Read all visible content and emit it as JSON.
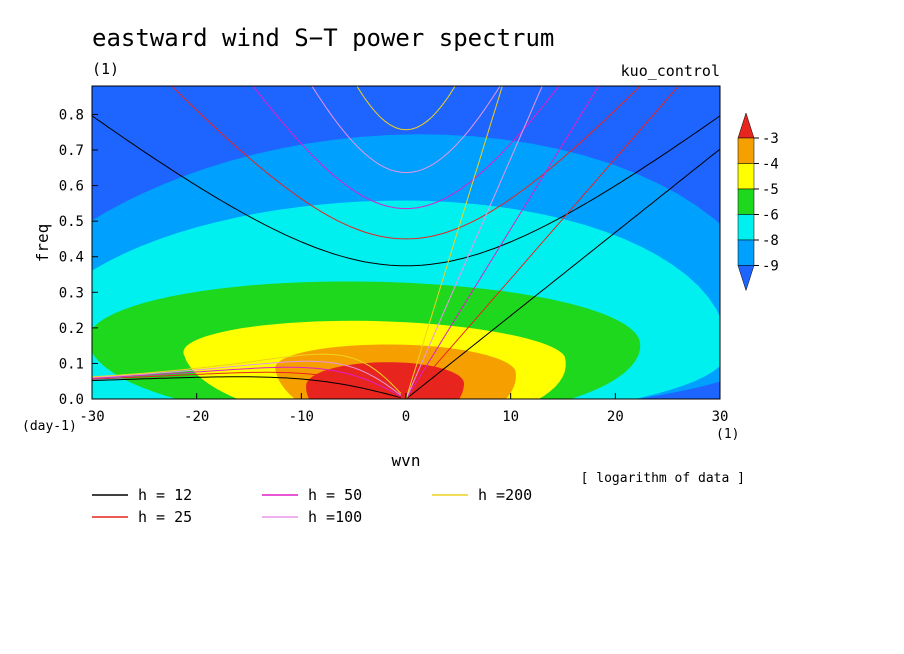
{
  "chart_data": {
    "type": "heatmap",
    "title": "eastward wind S−T power spectrum",
    "subtitle_left": "(1)",
    "subtitle_right": "kuo_control",
    "xlabel": "wvn",
    "ylabel": "freq",
    "x_unit": "(1)",
    "y_unit": "(day-1)",
    "note": "[ logarithm of data ]",
    "xlim": [
      -30,
      30
    ],
    "ylim": [
      0,
      0.88
    ],
    "xticks": [
      -30,
      -20,
      -10,
      0,
      10,
      20,
      30
    ],
    "yticks": [
      0.0,
      0.1,
      0.2,
      0.3,
      0.4,
      0.5,
      0.6,
      0.7,
      0.8
    ],
    "colorbar": {
      "levels": [
        "-3",
        "-4",
        "-5",
        "-6",
        "-8",
        "-9"
      ],
      "colors": [
        "#e8241e",
        "#f5a000",
        "#ffff00",
        "#1ed81e",
        "#00f0f0",
        "#00a0ff",
        "#1e64ff"
      ]
    },
    "background_color": "#1e64ff",
    "contour_fill": [
      {
        "level": "-9",
        "color": "#00a0ff",
        "cx": -3,
        "cy": 0.12,
        "a": 38,
        "top": 0.74,
        "bottom": 0.02
      },
      {
        "level": "-8",
        "color": "#00f0f0",
        "cx": -3,
        "cy": 0.12,
        "a": 32,
        "top": 0.58,
        "bottom": 0.0
      },
      {
        "level": "-6",
        "color": "#1ed81e",
        "cx": -4,
        "cy": 0.16,
        "a": 25,
        "top": 0.34,
        "bottom": 0.0
      },
      {
        "level": "-5",
        "color": "#ffff00",
        "cx": -3,
        "cy": 0.12,
        "a": 18,
        "top": 0.22,
        "bottom": 0.0
      },
      {
        "level": "-4",
        "color": "#f5a000",
        "cx": -1,
        "cy": 0.08,
        "a": 12,
        "top": 0.15,
        "bottom": 0.0
      },
      {
        "level": "-3",
        "color": "#e8241e",
        "cx": -2,
        "cy": 0.04,
        "a": 8,
        "top": 0.1,
        "bottom": 0.0
      }
    ],
    "dispersion_curves": [
      {
        "label": "h = 12",
        "h": 12,
        "color": "#000000"
      },
      {
        "label": "h = 25",
        "h": 25,
        "color": "#e8241e"
      },
      {
        "label": "h = 50",
        "h": 50,
        "color": "#e01ec8"
      },
      {
        "label": "h =100",
        "h": 100,
        "color": "#e896e8"
      },
      {
        "label": "h =200",
        "h": 200,
        "color": "#f0d21e"
      }
    ]
  }
}
